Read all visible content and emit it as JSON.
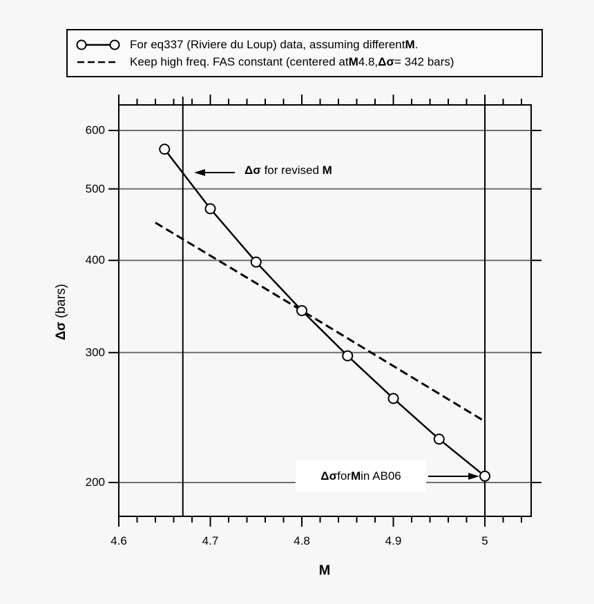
{
  "chart_data": {
    "type": "line",
    "title": "",
    "xlabel": "M",
    "ylabel_symbol": "Δσ",
    "ylabel_unit": "(bars)",
    "xlim": [
      4.6,
      5.05
    ],
    "ylim": [
      175,
      650
    ],
    "yscale": "log",
    "grid": true,
    "x_ticks": [
      4.6,
      4.7,
      4.8,
      4.9,
      5
    ],
    "x_tick_labels": [
      "4.6",
      "4.7",
      "4.8",
      "4.9",
      "5"
    ],
    "y_ticks": [
      200,
      300,
      400,
      500,
      600
    ],
    "y_tick_labels": [
      "200",
      "300",
      "400",
      "500",
      "600"
    ],
    "vertical_lines": [
      4.67,
      5.0
    ],
    "legend_position": "top (outside plot)",
    "series": [
      {
        "name": "For eq337 (Riviere du Loup) data, assuming different M.",
        "style": "solid line with open circles",
        "x": [
          4.65,
          4.7,
          4.75,
          4.8,
          4.85,
          4.9,
          4.95,
          5.0
        ],
        "values": [
          566,
          470,
          398,
          342,
          297,
          260,
          229,
          204
        ]
      },
      {
        "name": "Keep high freq. FAS constant (centered at M 4.8, Δσ = 342 bars)",
        "style": "dashed line",
        "x": [
          4.64,
          4.8,
          5.0
        ],
        "values": [
          450,
          342,
          242
        ]
      }
    ],
    "annotations": [
      {
        "text": "Δσ for revised M",
        "arrow_to": [
          4.67,
          520
        ]
      },
      {
        "text": "Δσ for M in AB06",
        "arrow_to": [
          5.0,
          204
        ]
      }
    ]
  },
  "legend": {
    "row1": {
      "text": "For eq337 (Riviere du Loup) data, assuming different ",
      "bold": "M",
      "tail": "."
    },
    "row2": {
      "pre": "Keep high freq. FAS constant (centered at ",
      "bold_m": "M",
      "mid": " 4.8, ",
      "bold_ds": "Δσ",
      "tail": " = 342 bars)"
    }
  },
  "annotation_revised": {
    "sym": "Δσ",
    "text": " for revised ",
    "bold": "M"
  },
  "annotation_ab06": {
    "sym": "Δσ",
    "text": " for ",
    "bold": "M",
    "tail": " in AB06"
  },
  "axes": {
    "ylabel_sym": "Δσ",
    "ylabel_unit": " (bars)",
    "xlabel": "M"
  }
}
